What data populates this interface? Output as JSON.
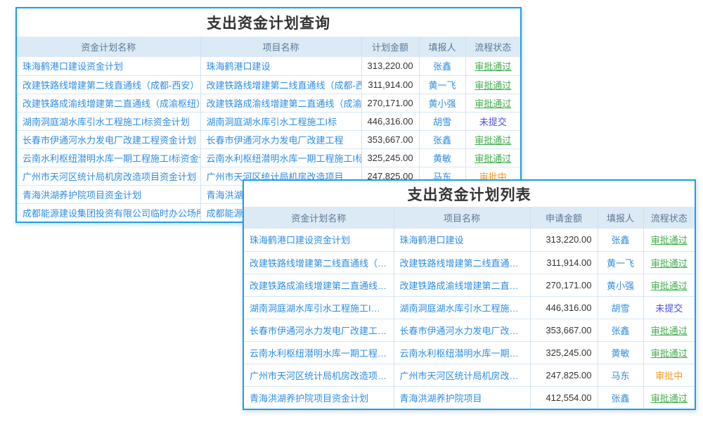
{
  "colors": {
    "window_border": "#1A9FE8",
    "header_bg": "#DCEAF5",
    "header_text": "#5B7A96",
    "link_blue": "#2E8DE5",
    "amount_text": "#333333",
    "status_approved": "#3FAE49",
    "status_unsubmitted": "#4B50DD",
    "status_inreview": "#F59A23"
  },
  "query_window": {
    "title": "支出资金计划查询",
    "columns": [
      "资金计划名称",
      "项目名称",
      "计划金额",
      "填报人",
      "流程状态"
    ],
    "rows": [
      {
        "plan_name": "珠海鹤港口建设资金计划",
        "project_name": "珠海鹤港口建设",
        "amount": "313,220.00",
        "reporter": "张鑫",
        "status": "审批通过",
        "status_type": "approved"
      },
      {
        "plan_name": "改建铁路线增建第二线直通线（成都-西安）电力",
        "project_name": "改建铁路线增建第二线直通线（成都-西安）",
        "amount": "311,914.00",
        "reporter": "黄一飞",
        "status": "审批通过",
        "status_type": "approved"
      },
      {
        "plan_name": "改建铁路成渝线增建第二直通线（成渝枢纽）电",
        "project_name": "改建铁路成渝线增建第二直通线（成渝枢纽）",
        "amount": "270,171.00",
        "reporter": "黄小强",
        "status": "审批通过",
        "status_type": "approved"
      },
      {
        "plan_name": "湖南洞庭湖水库引水工程施工I标资金计划",
        "project_name": "湖南洞庭湖水库引水工程施工I标",
        "amount": "446,316.00",
        "reporter": "胡雪",
        "status": "未提交",
        "status_type": "unsubmitted"
      },
      {
        "plan_name": "长春市伊通河水力发电厂改建工程资金计划",
        "project_name": "长春市伊通河水力发电厂改建工程",
        "amount": "353,667.00",
        "reporter": "张鑫",
        "status": "审批通过",
        "status_type": "approved"
      },
      {
        "plan_name": "云南水利枢纽潜明水库一期工程施工I标资金计划",
        "project_name": "云南水利枢纽潜明水库一期工程施工I标",
        "amount": "325,245.00",
        "reporter": "黄敏",
        "status": "审批通过",
        "status_type": "approved"
      },
      {
        "plan_name": "广州市天河区统计局机房改造项目资金计划",
        "project_name": "广州市天河区统计局机房改造项目",
        "amount": "247,825.00",
        "reporter": "马东",
        "status": "审批中",
        "status_type": "inreview"
      },
      {
        "plan_name": "青海洪湖养护院项目资金计划",
        "project_name": "青海洪湖养护院项目",
        "amount": "",
        "reporter": "",
        "status": "",
        "status_type": ""
      },
      {
        "plan_name": "成都能源建设集团投资有限公司临时办公场所装",
        "project_name": "成都能源建设集团投资有限公司临时办公场所",
        "amount": "",
        "reporter": "",
        "status": "",
        "status_type": ""
      }
    ]
  },
  "list_window": {
    "title": "支出资金计划列表",
    "columns": [
      "资金计划名称",
      "项目名称",
      "申请金额",
      "填报人",
      "流程状态"
    ],
    "rows": [
      {
        "plan_name": "珠海鹤港口建设资金计划",
        "project_name": "珠海鹤港口建设",
        "amount": "313,220.00",
        "reporter": "张鑫",
        "status": "审批通过",
        "status_type": "approved"
      },
      {
        "plan_name": "改建铁路线增建第二线直通线（成都-西安）电力",
        "project_name": "改建铁路线增建第二线直通线（成都-西安）",
        "amount": "311,914.00",
        "reporter": "黄一飞",
        "status": "审批通过",
        "status_type": "approved"
      },
      {
        "plan_name": "改建铁路成渝线增建第二直通线（成渝枢纽）电",
        "project_name": "改建铁路成渝线增建第二直通线（成渝枢纽）",
        "amount": "270,171.00",
        "reporter": "黄小强",
        "status": "审批通过",
        "status_type": "approved"
      },
      {
        "plan_name": "湖南洞庭湖水库引水工程施工I标资金计划",
        "project_name": "湖南洞庭湖水库引水工程施工I标",
        "amount": "446,316.00",
        "reporter": "胡雪",
        "status": "未提交",
        "status_type": "unsubmitted"
      },
      {
        "plan_name": "长春市伊通河水力发电厂改建工程资金计划",
        "project_name": "长春市伊通河水力发电厂改建工程",
        "amount": "353,667.00",
        "reporter": "张鑫",
        "status": "审批通过",
        "status_type": "approved"
      },
      {
        "plan_name": "云南水利枢纽潜明水库一期工程施工I标资金计划",
        "project_name": "云南水利枢纽潜明水库一期工程施工I标",
        "amount": "325,245.00",
        "reporter": "黄敏",
        "status": "审批通过",
        "status_type": "approved"
      },
      {
        "plan_name": "广州市天河区统计局机房改造项目资金计划",
        "project_name": "广州市天河区统计局机房改造项目",
        "amount": "247,825.00",
        "reporter": "马东",
        "status": "审批中",
        "status_type": "inreview"
      },
      {
        "plan_name": "青海洪湖养护院项目资金计划",
        "project_name": "青海洪湖养护院项目",
        "amount": "412,554.00",
        "reporter": "张鑫",
        "status": "审批通过",
        "status_type": "approved"
      }
    ]
  }
}
